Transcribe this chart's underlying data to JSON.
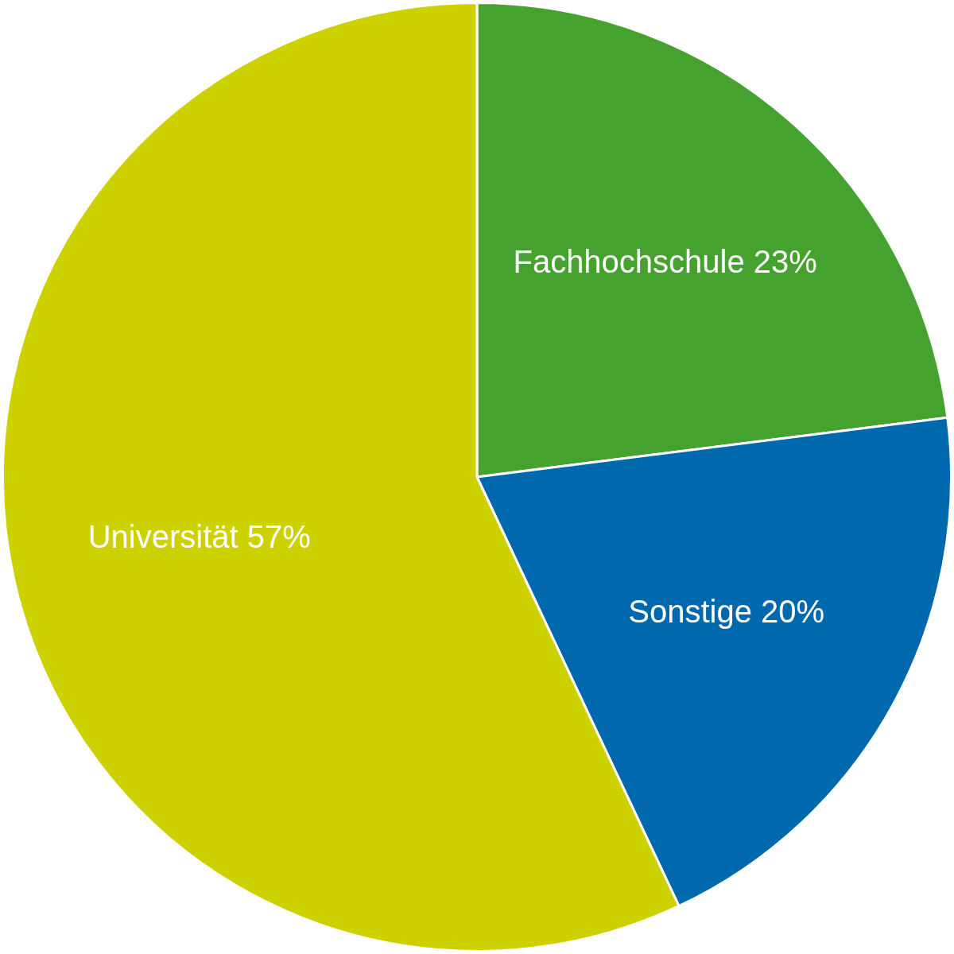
{
  "chart_data": {
    "type": "pie",
    "categories": [
      "Fachhochschule",
      "Sonstige",
      "Universität"
    ],
    "values": [
      23,
      20,
      57
    ],
    "colors": [
      "#46a22e",
      "#0069ad",
      "#cdd100"
    ],
    "value_labels": [
      "23%",
      "20%",
      "57%"
    ],
    "legend": false
  }
}
